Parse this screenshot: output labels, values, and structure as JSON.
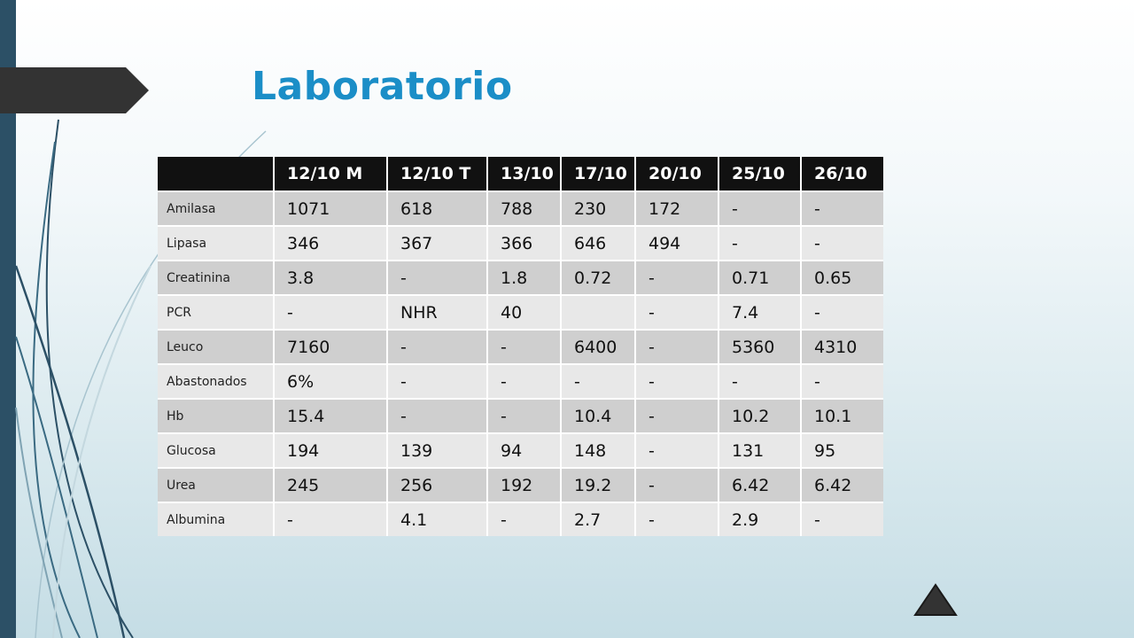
{
  "title": "Laboratorio",
  "table": {
    "headers": [
      "",
      "12/10 M",
      "12/10 T",
      "13/10",
      "17/10",
      "20/10",
      "25/10",
      "26/10"
    ],
    "rows": [
      {
        "label": "Amilasa",
        "cells": [
          "1071",
          "618",
          "788",
          "230",
          "172",
          "-",
          "-"
        ]
      },
      {
        "label": "Lipasa",
        "cells": [
          "346",
          "367",
          "366",
          "646",
          "494",
          "-",
          "-"
        ]
      },
      {
        "label": "Creatinina",
        "cells": [
          "3.8",
          "-",
          "1.8",
          "0.72",
          "-",
          "0.71",
          "0.65"
        ]
      },
      {
        "label": "PCR",
        "cells": [
          "-",
          "NHR",
          "40",
          "",
          "-",
          "7.4",
          "-"
        ]
      },
      {
        "label": "Leuco",
        "cells": [
          "7160",
          "-",
          "-",
          "6400",
          "-",
          "5360",
          "4310"
        ]
      },
      {
        "label": "Abastonados",
        "cells": [
          "6%",
          "-",
          "-",
          "-",
          "-",
          "-",
          "-"
        ]
      },
      {
        "label": "Hb",
        "cells": [
          "15.4",
          "-",
          "-",
          "10.4",
          "-",
          "10.2",
          "10.1"
        ]
      },
      {
        "label": "Glucosa",
        "cells": [
          "194",
          "139",
          "94",
          "148",
          "-",
          "131",
          "95"
        ]
      },
      {
        "label": "Urea",
        "cells": [
          "245",
          "256",
          "192",
          "19.2",
          "-",
          "6.42",
          "6.42"
        ]
      },
      {
        "label": "Albumina",
        "cells": [
          "-",
          "4.1",
          "-",
          "2.7",
          "-",
          "2.9",
          "-"
        ]
      }
    ]
  },
  "colors": {
    "title": "#1b8ec7",
    "header_bg": "#111111",
    "row_odd": "#cfcfcf",
    "row_even": "#e8e8e8",
    "left_bar": "#2c5066",
    "tab": "#333333"
  },
  "icons": {
    "nav": "triangle-up-icon"
  }
}
